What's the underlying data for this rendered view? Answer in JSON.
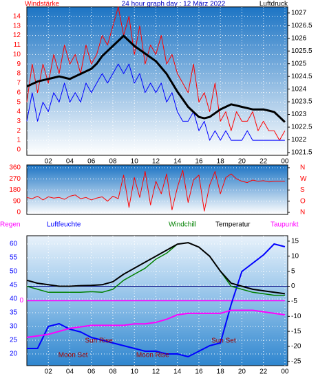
{
  "chart_data": [
    {
      "type": "line",
      "title": "24 hour graph day : 12 März 2022",
      "y_label": "Windstärke",
      "y2_label": "Luftdruck",
      "x": [
        0,
        0.5,
        1,
        1.5,
        2,
        2.5,
        3,
        3.5,
        4,
        4.5,
        5,
        5.5,
        6,
        6.5,
        7,
        7.5,
        8,
        8.5,
        9,
        9.5,
        10,
        10.5,
        11,
        11.5,
        12,
        12.5,
        13,
        13.5,
        14,
        14.5,
        15,
        15.5,
        16,
        16.5,
        17,
        17.5,
        18,
        18.5,
        19,
        19.5,
        20,
        20.5,
        21,
        21.5,
        22,
        22.5,
        23,
        23.5,
        24
      ],
      "xlim": [
        0,
        24.26
      ],
      "xticks": [
        {
          "value": 2,
          "label": "02"
        },
        {
          "value": 4,
          "label": "04"
        },
        {
          "value": 6,
          "label": "06"
        },
        {
          "value": 8,
          "label": "08"
        },
        10,
        12,
        14,
        16,
        18,
        20,
        22,
        {
          "value": 24,
          "label": "00"
        }
      ],
      "ylim": [
        -0.58,
        15
      ],
      "yticks": [
        0,
        1,
        2,
        3,
        4,
        5,
        6,
        7,
        8,
        9,
        10,
        11,
        12,
        13,
        14
      ],
      "y2lim": [
        1021.39,
        1027.24
      ],
      "y2ticks": [
        1021.5,
        1022,
        1022.5,
        1023,
        1023.5,
        1024,
        1024.5,
        1025,
        1025.5,
        1026,
        1026.5,
        1027
      ],
      "grid": true,
      "series": [
        {
          "color": "#ff0000",
          "values": [
            5,
            9,
            6,
            9,
            7,
            10,
            8,
            11,
            9,
            10,
            8,
            11,
            9,
            10,
            12,
            11,
            13,
            15,
            12,
            14,
            10,
            13,
            9,
            11,
            10,
            12,
            9,
            10,
            8,
            7,
            6,
            9,
            5,
            6,
            4,
            7,
            3,
            4,
            2,
            4,
            3,
            3,
            4,
            2,
            3,
            2,
            2,
            1,
            2
          ]
        },
        {
          "color": "#0000ff",
          "values": [
            3,
            6,
            3,
            5,
            4,
            6,
            5,
            7,
            5,
            6,
            5,
            7,
            6,
            7,
            8,
            7,
            8,
            9,
            8,
            9,
            7,
            8,
            6,
            7,
            6,
            7,
            5,
            6,
            4,
            3,
            3,
            4,
            2,
            3,
            1,
            2,
            1,
            2,
            1,
            1,
            1,
            2,
            1,
            1,
            1,
            1,
            1,
            1,
            1
          ]
        },
        {
          "color": "#000000",
          "axis": "y2",
          "values": [
            1024.1,
            1024.2,
            1024.3,
            1024.35,
            1024.4,
            1024.45,
            1024.5,
            1024.45,
            1024.4,
            1024.5,
            1024.6,
            1024.7,
            1024.8,
            1025.0,
            1025.3,
            1025.5,
            1025.7,
            1025.9,
            1026.1,
            1025.9,
            1025.7,
            1025.55,
            1025.4,
            1025.25,
            1025.1,
            1024.85,
            1024.6,
            1024.25,
            1023.9,
            1023.6,
            1023.3,
            1023.1,
            1022.9,
            1022.85,
            1022.9,
            1023.05,
            1023.2,
            1023.3,
            1023.4,
            1023.35,
            1023.3,
            1023.25,
            1023.2,
            1023.2,
            1023.2,
            1023.15,
            1023.1,
            1022.9,
            1022.7
          ]
        }
      ]
    },
    {
      "type": "line",
      "x": [
        0,
        0.5,
        1,
        1.5,
        2,
        2.5,
        3,
        3.5,
        4,
        4.5,
        5,
        5.5,
        6,
        6.5,
        7,
        7.5,
        8,
        8.5,
        9,
        9.5,
        10,
        10.5,
        11,
        11.5,
        12,
        12.5,
        13,
        13.5,
        14,
        14.5,
        15,
        15.5,
        16,
        16.5,
        17,
        17.5,
        18,
        18.5,
        19,
        19.5,
        20,
        20.5,
        21,
        21.5,
        22,
        22.5,
        23,
        23.5,
        24
      ],
      "xlim": [
        0,
        24.26
      ],
      "ylim": [
        -16.6,
        382
      ],
      "yticks": [
        0,
        90,
        180,
        270,
        360
      ],
      "y2lim": [
        -16.6,
        382
      ],
      "y2ticks": [
        {
          "value": 0,
          "label": "N"
        },
        {
          "value": 90,
          "label": "O"
        },
        {
          "value": 180,
          "label": "S"
        },
        {
          "value": 270,
          "label": "W"
        },
        {
          "value": 360,
          "label": "N"
        }
      ],
      "grid": true,
      "series": [
        {
          "color": "#ff0000",
          "values": [
            120,
            110,
            130,
            100,
            125,
            115,
            120,
            105,
            130,
            140,
            110,
            120,
            100,
            115,
            125,
            90,
            130,
            110,
            300,
            40,
            280,
            120,
            330,
            60,
            250,
            150,
            310,
            20,
            200,
            340,
            80,
            260,
            300,
            10,
            220,
            330,
            150,
            280,
            310,
            270,
            250,
            240,
            260,
            250,
            255,
            245,
            250,
            250,
            250
          ]
        }
      ]
    },
    {
      "type": "line",
      "x": [
        0,
        1,
        2,
        3,
        4,
        5,
        6,
        7,
        8,
        9,
        10,
        11,
        12,
        13,
        14,
        15,
        16,
        17,
        18,
        19,
        20,
        21,
        22,
        23,
        24
      ],
      "xlim": [
        0,
        24.26
      ],
      "xticks": [
        {
          "value": 2,
          "label": "02"
        },
        {
          "value": 4,
          "label": "04"
        },
        {
          "value": 6,
          "label": "06"
        },
        {
          "value": 8,
          "label": "08"
        },
        10,
        12,
        14,
        16,
        18,
        20,
        22,
        {
          "value": 24,
          "label": "00"
        }
      ],
      "ylim": [
        15.75,
        63
      ],
      "yticks": [
        20,
        25,
        30,
        35,
        40,
        45,
        50,
        55,
        60
      ],
      "y2lim": [
        -26.4,
        16.8
      ],
      "y2ticks": [
        -25,
        -20,
        -15,
        -10,
        -5,
        0,
        5,
        10,
        15
      ],
      "y3lim": [
        -6,
        6
      ],
      "y3ticks": [
        0
      ],
      "grid": true,
      "zero_line": true,
      "series": [
        {
          "name": "Regen",
          "color": "#ff00ff",
          "axis": "y3",
          "values": [
            0,
            0,
            0,
            0,
            0,
            0,
            0,
            0,
            0,
            0,
            0,
            0,
            0,
            0,
            0,
            0,
            0,
            0,
            0,
            0,
            0,
            0,
            0,
            0,
            0
          ]
        },
        {
          "name": "Luftfeuchte",
          "color": "#0000ff",
          "values": [
            22,
            22,
            30,
            31,
            29,
            28,
            26,
            25,
            24,
            23,
            22,
            21,
            21,
            20,
            20,
            19,
            21,
            23,
            24,
            38,
            50,
            53,
            56,
            60,
            59
          ]
        },
        {
          "name": "Windchill",
          "color": "#008000",
          "axis": "y2",
          "values": [
            0,
            -1,
            -2,
            -2,
            -2,
            -2,
            -1.8,
            -2,
            -1,
            2,
            4,
            6,
            9,
            11,
            14,
            14.5,
            13,
            10,
            5,
            0,
            -1,
            -2,
            -2.5,
            -3,
            -3
          ]
        },
        {
          "name": "Temperatur",
          "color": "#000000",
          "axis": "y2",
          "values": [
            2,
            1,
            0.5,
            0,
            0,
            0.2,
            0.3,
            0.5,
            1.5,
            4,
            6,
            8,
            10,
            12,
            14,
            14.5,
            13,
            10,
            5,
            1,
            0,
            -1,
            -1.5,
            -2,
            -2.5
          ]
        },
        {
          "name": "Taupunkt",
          "color": "#ff00ff",
          "axis": "y2",
          "values": [
            -17,
            -16.5,
            -16,
            -15,
            -14,
            -13.5,
            -13,
            -13,
            -13,
            -13,
            -12.5,
            -12.5,
            -12,
            -11,
            -9.5,
            -9,
            -9,
            -9,
            -9,
            -8,
            -8,
            -8,
            -8.5,
            -9,
            -9.5
          ]
        }
      ],
      "annotations": [
        {
          "text": "Sun Rise",
          "x": 6.7
        },
        {
          "text": "Sun Set",
          "x": 18.3
        },
        {
          "text": "Moon Set",
          "x": 4.3
        },
        {
          "text": "Moon Rise",
          "x": 11.7
        }
      ]
    }
  ]
}
